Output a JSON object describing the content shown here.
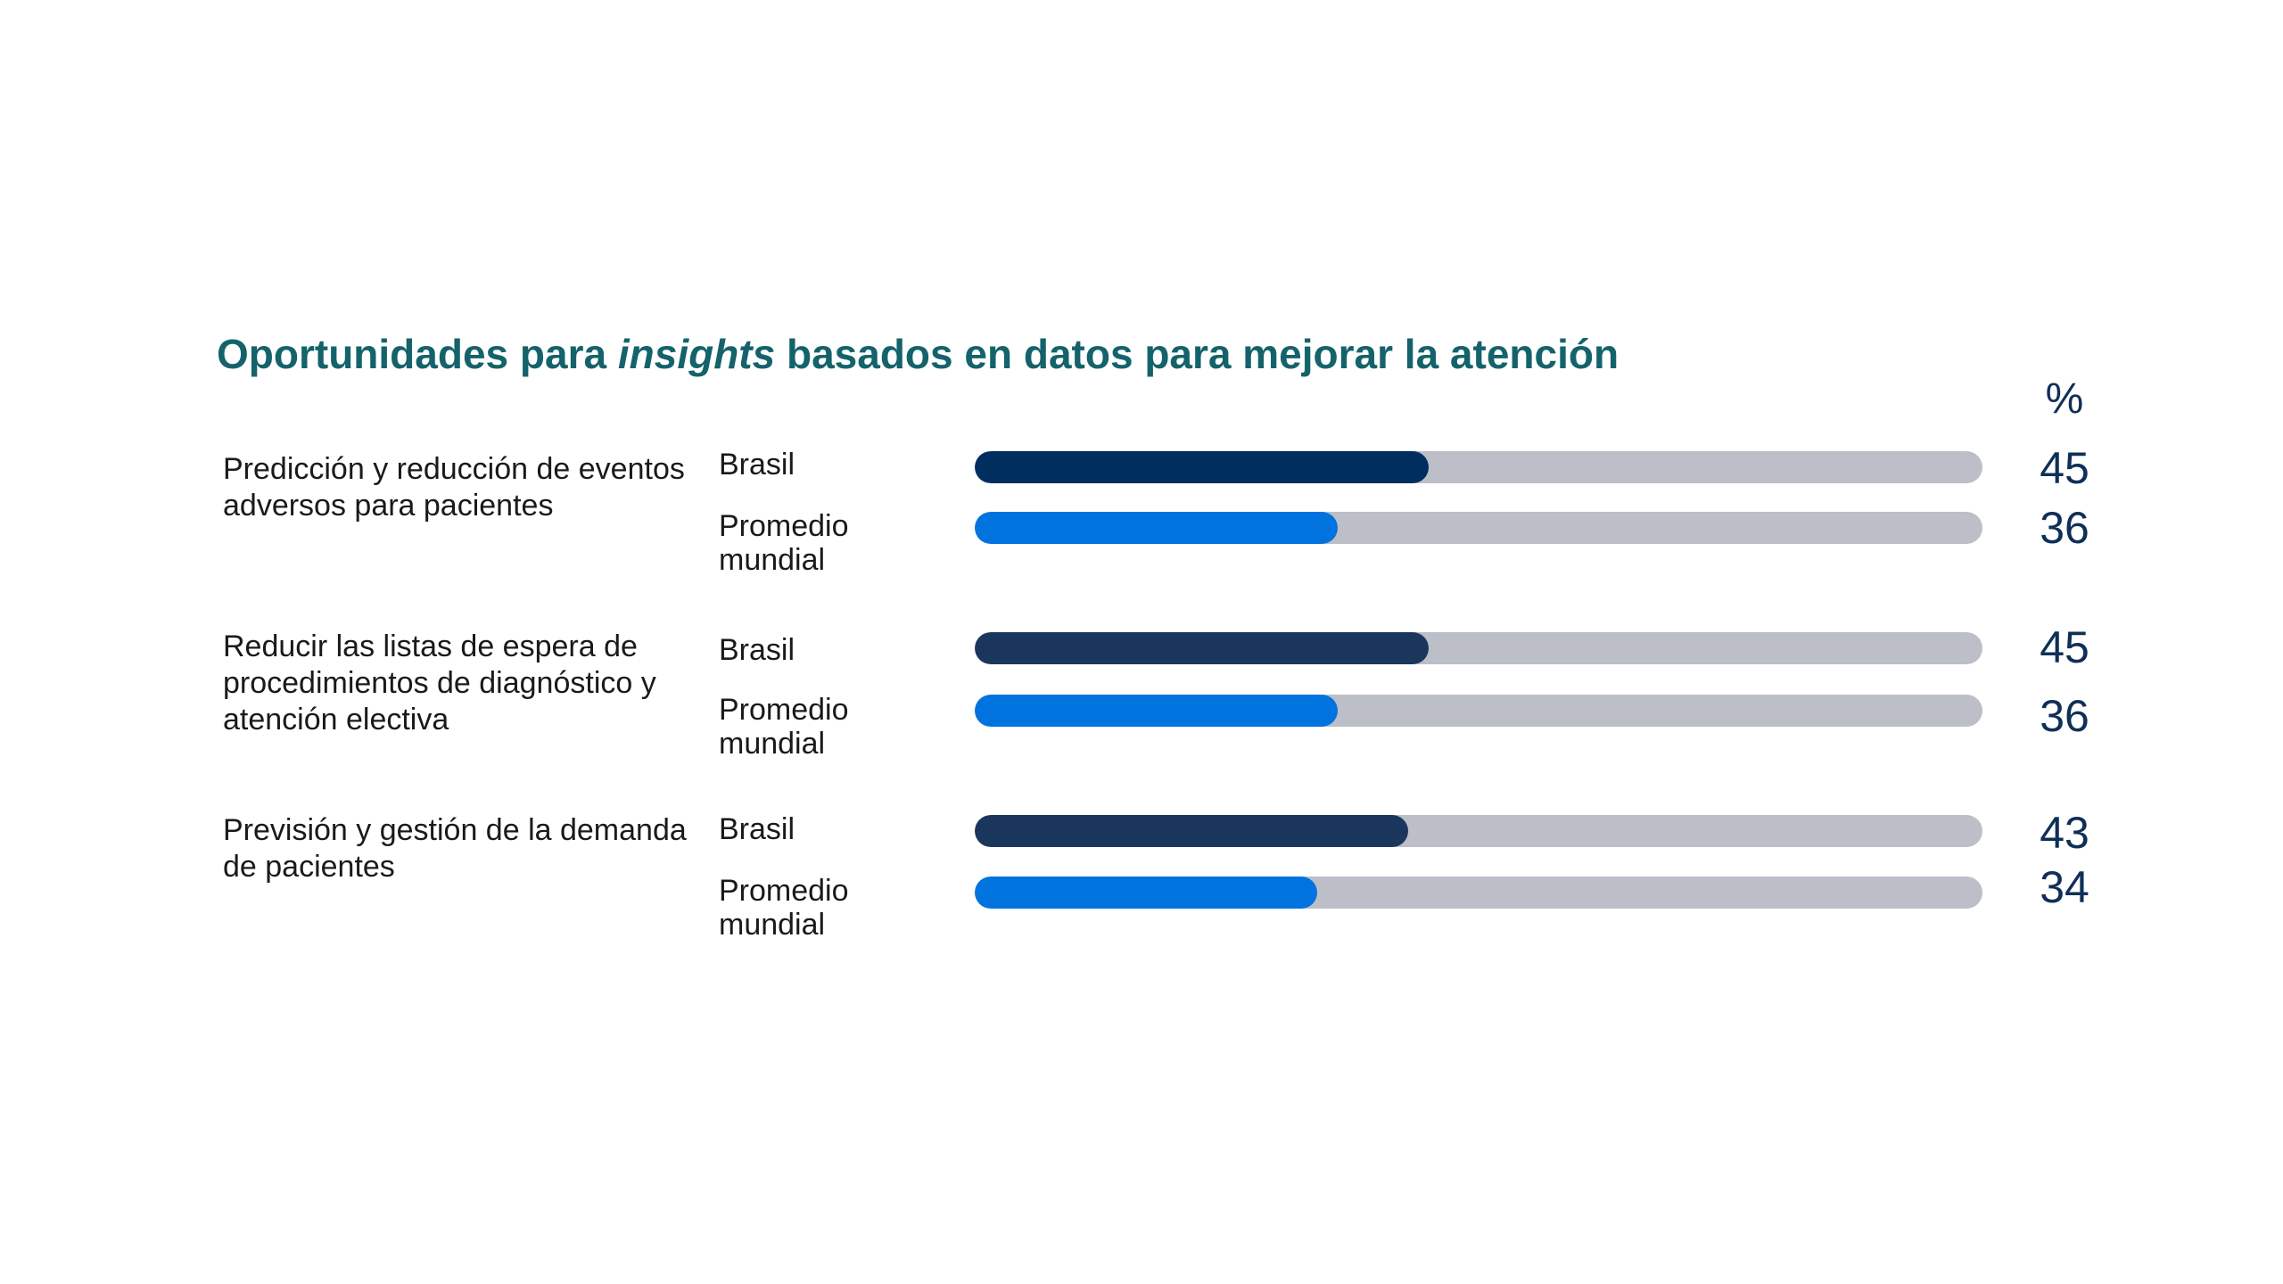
{
  "chart_data": {
    "type": "bar",
    "orientation": "horizontal",
    "title_parts": [
      "Oportunidades para ",
      "insights",
      " basados en datos para mejorar la atención"
    ],
    "unit": "%",
    "xlim": [
      0,
      100
    ],
    "colors": {
      "brasil_group1": "#002e5e",
      "brasil": "#1b365d",
      "promedio": "#0073de",
      "track": "#bcbec8"
    },
    "categories": [
      "Predicción y reducción de eventos adversos para pacientes",
      "Reducir las listas de espera de procedimientos de diagnóstico y atención electiva",
      "Previsión y gestión de la demanda de pacientes"
    ],
    "series": [
      {
        "name": "Brasil",
        "values": [
          45,
          45,
          43
        ]
      },
      {
        "name": "Promedio mundial",
        "values": [
          36,
          36,
          34
        ]
      }
    ]
  }
}
